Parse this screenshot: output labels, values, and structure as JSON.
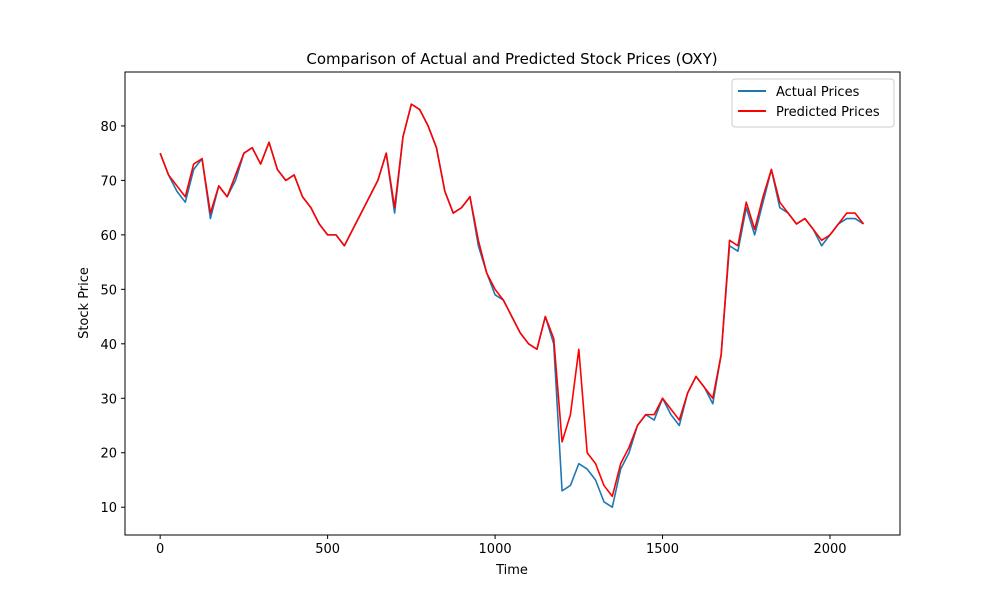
{
  "chart_data": {
    "type": "line",
    "title": "Comparison of Actual and Predicted Stock Prices (OXY)",
    "x_label": "Time",
    "y_label": "Stock Price",
    "xlim": [
      -105,
      2209
    ],
    "ylim": [
      4.9,
      89.9
    ],
    "xticks": [
      0,
      500,
      1000,
      1500,
      2000
    ],
    "yticks": [
      10,
      20,
      30,
      40,
      50,
      60,
      70,
      80
    ],
    "grid": false,
    "legend": "upper right",
    "x": [
      0,
      25,
      50,
      75,
      100,
      125,
      150,
      175,
      200,
      225,
      250,
      275,
      300,
      325,
      350,
      375,
      400,
      425,
      450,
      475,
      500,
      525,
      550,
      575,
      600,
      625,
      650,
      675,
      700,
      725,
      750,
      775,
      800,
      825,
      850,
      875,
      900,
      925,
      950,
      975,
      1000,
      1025,
      1050,
      1075,
      1100,
      1125,
      1150,
      1175,
      1200,
      1225,
      1250,
      1275,
      1300,
      1325,
      1350,
      1375,
      1400,
      1425,
      1450,
      1475,
      1500,
      1525,
      1550,
      1575,
      1600,
      1625,
      1650,
      1675,
      1700,
      1725,
      1750,
      1775,
      1800,
      1825,
      1850,
      1875,
      1900,
      1925,
      1950,
      1975,
      2000,
      2025,
      2050,
      2075,
      2100
    ],
    "series": [
      {
        "name": "Actual Prices",
        "color": "#1f77b4",
        "values": [
          75,
          71,
          68,
          66,
          72,
          74,
          63,
          69,
          67,
          70,
          75,
          76,
          73,
          77,
          72,
          70,
          71,
          67,
          65,
          62,
          60,
          60,
          58,
          61,
          64,
          67,
          70,
          75,
          64,
          78,
          84,
          83,
          80,
          76,
          68,
          64,
          65,
          67,
          58,
          53,
          49,
          48,
          45,
          42,
          40,
          39,
          45,
          40,
          13,
          14,
          18,
          17,
          15,
          11,
          10,
          17,
          20,
          25,
          27,
          26,
          30,
          27,
          25,
          31,
          34,
          32,
          29,
          38,
          58,
          57,
          65,
          60,
          66,
          72,
          65,
          64,
          62,
          63,
          61,
          58,
          60,
          62,
          63,
          63,
          62
        ]
      },
      {
        "name": "Predicted Prices",
        "color": "#ff0000",
        "values": [
          75,
          71,
          69,
          67,
          73,
          74,
          64,
          69,
          67,
          71,
          75,
          76,
          73,
          77,
          72,
          70,
          71,
          67,
          65,
          62,
          60,
          60,
          58,
          61,
          64,
          67,
          70,
          75,
          65,
          78,
          84,
          83,
          80,
          76,
          68,
          64,
          65,
          67,
          59,
          53,
          50,
          48,
          45,
          42,
          40,
          39,
          45,
          41,
          22,
          27,
          39,
          20,
          18,
          14,
          12,
          18,
          21,
          25,
          27,
          27,
          30,
          28,
          26,
          31,
          34,
          32,
          30,
          38,
          59,
          58,
          66,
          61,
          67,
          72,
          66,
          64,
          62,
          63,
          61,
          59,
          60,
          62,
          64,
          64,
          62
        ]
      }
    ]
  }
}
